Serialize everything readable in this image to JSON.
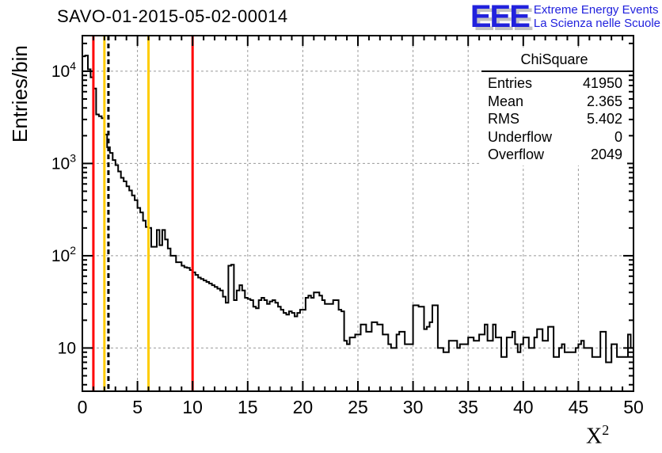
{
  "header": {
    "title": "SAVO-01-2015-05-02-00014",
    "logo": {
      "letters": "EEE",
      "line1": "Extreme Energy Events",
      "line2": "La Scienza nelle Scuole",
      "color": "#2121dd",
      "shadow_color": "#c2c2c2"
    }
  },
  "stats_box": {
    "title": "ChiSquare",
    "rows": [
      {
        "label": "Entries",
        "value": "41950"
      },
      {
        "label": "Mean",
        "value": "2.365"
      },
      {
        "label": "RMS",
        "value": "5.402"
      },
      {
        "label": "Underflow",
        "value": "0"
      },
      {
        "label": "Overflow",
        "value": "2049"
      }
    ]
  },
  "chart_data": {
    "type": "bar",
    "style": "step-outline-histogram",
    "title": "SAVO-01-2015-05-02-00014",
    "xlabel_base": "X",
    "xlabel_sup": "2",
    "ylabel": "Entries/bin",
    "xlim": [
      0,
      50
    ],
    "ylim": [
      3.4,
      24300
    ],
    "ylog": true,
    "grid": "dashed-gray-on-major-ticks",
    "x_ticks": [
      0,
      5,
      10,
      15,
      20,
      25,
      30,
      35,
      40,
      45,
      50
    ],
    "x_minor_step": 1,
    "y_ticks": [
      {
        "value": 10,
        "label": "10",
        "sup": ""
      },
      {
        "value": 100,
        "label": "10",
        "sup": "2"
      },
      {
        "value": 1000,
        "label": "10",
        "sup": "3"
      },
      {
        "value": 10000,
        "label": "10",
        "sup": "4"
      }
    ],
    "bin_start": 0,
    "bin_width": 0.25,
    "values": [
      14500,
      14800,
      10500,
      8600,
      6500,
      3400,
      3250,
      3100,
      2060,
      1500,
      1300,
      1090,
      960,
      820,
      700,
      640,
      565,
      510,
      450,
      400,
      330,
      295,
      240,
      205,
      200,
      125,
      125,
      190,
      130,
      190,
      150,
      120,
      100,
      100,
      85,
      85,
      78,
      75,
      74,
      70,
      66,
      62,
      58,
      56,
      54,
      52,
      50,
      48,
      46,
      44,
      42,
      36,
      31,
      78,
      80,
      33,
      42,
      48,
      42,
      35,
      34,
      33,
      28,
      27,
      33,
      35,
      33,
      30,
      32,
      33,
      31,
      28,
      26,
      24,
      23,
      25,
      24,
      22,
      24,
      26,
      26,
      35,
      37,
      35,
      40,
      40,
      37,
      33,
      30,
      30,
      30,
      33,
      33,
      26,
      25,
      12,
      11,
      13,
      13,
      14,
      14,
      18,
      18,
      15,
      15,
      19,
      19,
      18,
      18,
      14,
      14,
      11,
      10,
      10,
      14,
      15,
      15,
      11,
      11,
      11,
      29,
      29,
      28,
      28,
      16,
      17,
      19,
      29,
      29,
      10,
      10,
      9,
      9,
      12,
      12,
      12,
      10,
      11,
      11,
      11,
      13,
      13,
      12,
      12,
      14,
      14,
      18,
      12,
      12,
      18,
      13,
      13,
      8,
      8,
      13,
      13,
      15,
      11,
      9,
      11,
      13,
      13,
      10,
      10,
      13,
      16,
      16,
      12,
      12,
      17,
      17,
      8,
      8,
      10,
      11,
      9,
      9,
      9,
      9,
      10,
      11,
      12,
      10,
      10,
      10,
      8,
      8,
      8,
      15,
      15,
      7,
      7,
      11,
      11,
      8,
      8,
      8,
      8,
      14,
      10
    ],
    "vlines": [
      {
        "x": 1,
        "color": "#ff0000",
        "style": "solid",
        "name": "red-cut-line-1"
      },
      {
        "x": 2,
        "color": "#ffcc00",
        "style": "solid",
        "name": "yellow-cut-line-2"
      },
      {
        "x": 2.365,
        "color": "#000000",
        "style": "dashed",
        "name": "mean-dashed-line"
      },
      {
        "x": 6,
        "color": "#ffcc00",
        "style": "solid",
        "name": "yellow-cut-line-6"
      },
      {
        "x": 10,
        "color": "#ff0000",
        "style": "solid",
        "name": "red-cut-line-10"
      }
    ],
    "colors": {
      "histogram": "#000000",
      "frame": "#000000",
      "grid": "#999999",
      "red_line": "#ff0000",
      "yellow_line": "#ffcc00"
    }
  }
}
